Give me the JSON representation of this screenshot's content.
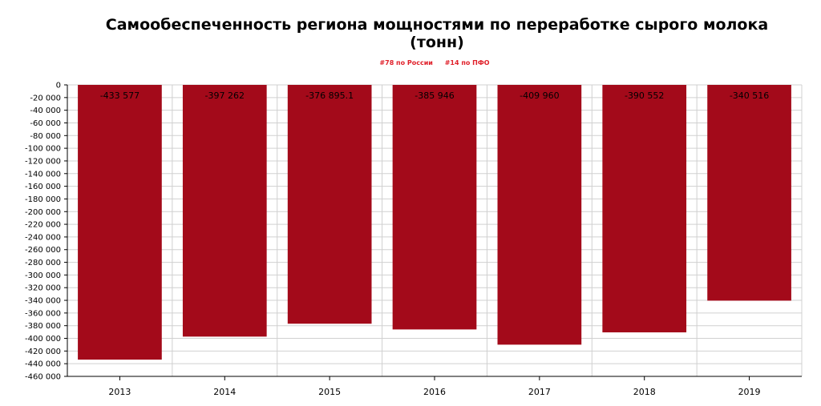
{
  "title": "Самообеспеченность региона мощностями по переработке сырого молока (тонн)",
  "badges": [
    "#78 по России",
    "#14 по ПФО"
  ],
  "colors": {
    "bar": "#a30a1a",
    "badge": "#e0202a",
    "grid": "#d0d0d0"
  },
  "chart_data": {
    "type": "bar",
    "title": "Самообеспеченность региона мощностями по переработке сырого молока (тонн)",
    "categories": [
      "2013",
      "2014",
      "2015",
      "2016",
      "2017",
      "2018",
      "2019"
    ],
    "values": [
      -433577,
      -397262,
      -376895.1,
      -385946,
      -409960,
      -390552,
      -340516
    ],
    "value_labels": [
      "-433 577",
      "-397 262",
      "-376 895.1",
      "-385 946",
      "-409 960",
      "-390 552",
      "-340 516"
    ],
    "yticks": [
      "0",
      "-20 000",
      "-40 000",
      "-60 000",
      "-80 000",
      "-100 000",
      "-120 000",
      "-140 000",
      "-160 000",
      "-180 000",
      "-200 000",
      "-220 000",
      "-240 000",
      "-260 000",
      "-280 000",
      "-300 000",
      "-320 000",
      "-340 000",
      "-360 000",
      "-380 000",
      "-400 000",
      "-420 000",
      "-440 000",
      "-460 000"
    ],
    "ylim": [
      -460000,
      0
    ],
    "xlabel": "",
    "ylabel": "",
    "grid": true
  }
}
